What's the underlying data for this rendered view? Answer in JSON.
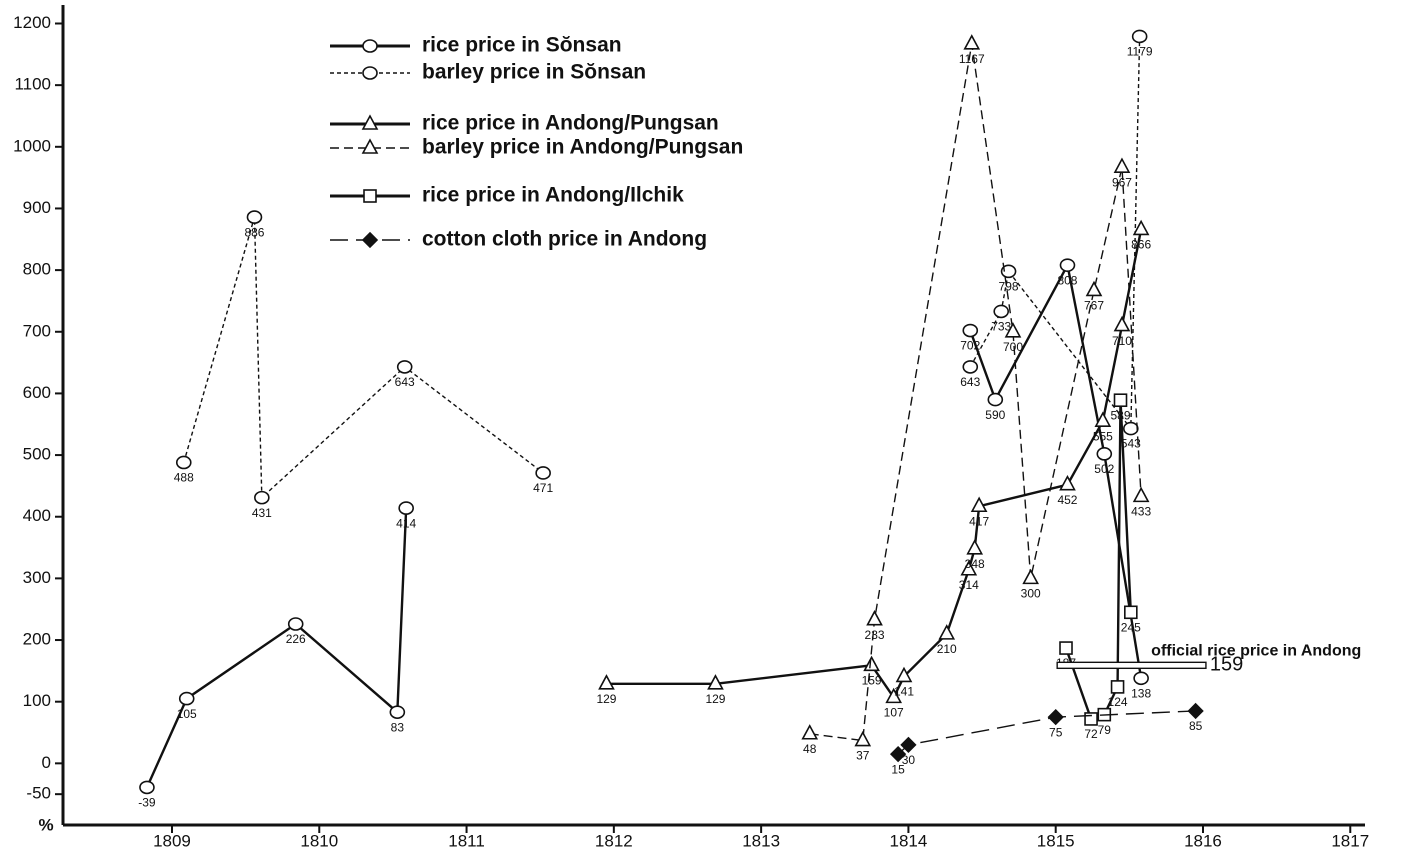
{
  "chart_data": {
    "type": "line",
    "ylabel": "%",
    "xlim": [
      1808.26,
      1817.1
    ],
    "xticks": [
      1809,
      1810,
      1811,
      1812,
      1813,
      1814,
      1815,
      1816,
      1817
    ],
    "ylim": [
      -100,
      1230
    ],
    "yticks": [
      -50,
      0,
      100,
      200,
      300,
      400,
      500,
      600,
      700,
      800,
      900,
      1000,
      1100,
      1200
    ],
    "series": [
      {
        "name": "rice price in Sŏnsan",
        "color": "#111111",
        "dash": "solid",
        "marker": "circle",
        "x": [
          1808.83,
          1809.1,
          1809.84,
          1810.53,
          1810.59,
          null,
          1814.42,
          1814.59,
          1815.08,
          1815.33,
          1815.58
        ],
        "values": [
          -39,
          105,
          226,
          83,
          414,
          null,
          702,
          590,
          808,
          502,
          138
        ]
      },
      {
        "name": "barley price in Sŏnsan",
        "color": "#111111",
        "dash": "dotted",
        "marker": "circle",
        "x": [
          1809.08,
          1809.56,
          1809.61,
          1810.58,
          1811.52,
          null,
          1814.42,
          1814.63,
          1814.68,
          1815.51,
          1815.57
        ],
        "values": [
          488,
          886,
          431,
          643,
          471,
          null,
          643,
          733,
          798,
          543,
          1179
        ]
      },
      {
        "name": "rice price in Andong/Pungsan",
        "color": "#111111",
        "dash": "solid",
        "marker": "triangle",
        "x": [
          1811.95,
          1812.69,
          1813.75,
          1813.9,
          1813.97,
          1814.26,
          1814.41,
          1814.45,
          1814.48,
          1815.08,
          1815.32,
          1815.45,
          1815.58
        ],
        "values": [
          129,
          129,
          159,
          107,
          141,
          210,
          314,
          348,
          417,
          452,
          555,
          710,
          866
        ]
      },
      {
        "name": "barley price in Andong/Pungsan",
        "color": "#111111",
        "dash": "dashed",
        "marker": "triangle",
        "x": [
          1813.33,
          1813.69,
          1813.77,
          1814.43,
          1814.71,
          1814.83,
          1815.26,
          1815.45,
          1815.58
        ],
        "values": [
          48,
          37,
          233,
          1167,
          700,
          300,
          767,
          967,
          433
        ]
      },
      {
        "name": "rice price in Andong/Ilchik",
        "color": "#111111",
        "dash": "solid",
        "marker": "square",
        "x": [
          1815.07,
          1815.24,
          1815.33,
          1815.42,
          1815.44,
          1815.51
        ],
        "values": [
          187,
          72,
          79,
          124,
          589,
          245
        ]
      },
      {
        "name": "cotton cloth price in Andong",
        "color": "#111111",
        "dash": "longdash",
        "marker": "diamond",
        "x": [
          1813.93,
          1814.0,
          1815.0,
          1815.95
        ],
        "values": [
          15,
          30,
          75,
          85
        ]
      }
    ],
    "annotation": {
      "text": "official rice price in Andong",
      "value": 159,
      "x": [
        1815.01,
        1816.02
      ]
    }
  }
}
